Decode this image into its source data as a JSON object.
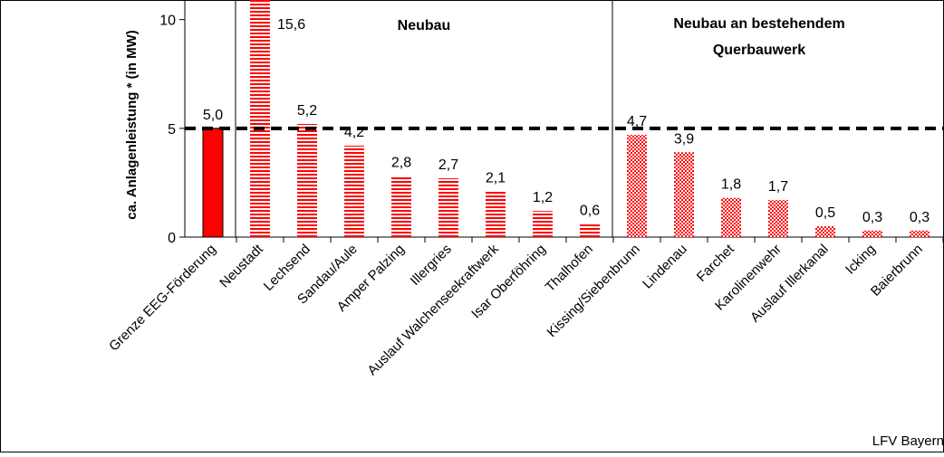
{
  "chart_data": {
    "type": "bar",
    "ylabel": "ca. Anlagenleistung * (in MW)",
    "ylim": [
      0,
      10.9
    ],
    "yticks": [
      0,
      5,
      10
    ],
    "threshold": 5,
    "categories": [
      "Grenze EEG-Förderung",
      "Neustadt",
      "Lechsend",
      "Sandau/Aule",
      "Amper Palzing",
      "Illergries",
      "Auslauf Walchenseekraftwerk",
      "Isar Oberföhring",
      "Thalhofen",
      "Kissing/Siebenbrunn",
      "Lindenau",
      "Farchet",
      "Karolinenwehr",
      "Auslauf Illerkanal",
      "Icking",
      "Baierbrunn"
    ],
    "values": [
      5.0,
      15.6,
      5.2,
      4.2,
      2.8,
      2.7,
      2.1,
      1.2,
      0.6,
      4.7,
      3.9,
      1.8,
      1.7,
      0.5,
      0.3,
      0.3
    ],
    "value_labels": [
      "5,0",
      "15,6",
      "5,2",
      "4,2",
      "2,8",
      "2,7",
      "2,1",
      "1,2",
      "0,6",
      "4,7",
      "3,9",
      "1,8",
      "1,7",
      "0,5",
      "0,3",
      "0,3"
    ],
    "patterns": [
      "solid",
      "lines",
      "lines",
      "lines",
      "lines",
      "lines",
      "lines",
      "lines",
      "lines",
      "checker",
      "checker",
      "checker",
      "checker",
      "checker",
      "checker",
      "checker"
    ],
    "group_labels": {
      "neubau": "Neubau",
      "bestehend_line1": "Neubau an bestehendem",
      "bestehend_line2": "Querbauwerk"
    },
    "source": "LFV Bayern",
    "colors": {
      "bar": "#ff0000",
      "bar_light": "#ffd6d6",
      "threshold": "#000000"
    }
  }
}
